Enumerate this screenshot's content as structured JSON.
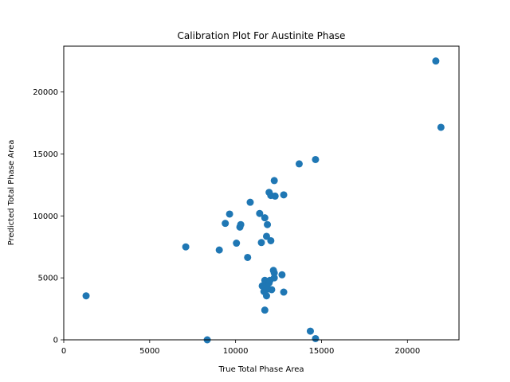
{
  "chart_data": {
    "type": "scatter",
    "title": "Calibration Plot For Austinite Phase",
    "xlabel": "True Total Phase Area",
    "ylabel": "Predicted Total Phase Area",
    "xlim": [
      0,
      23000
    ],
    "ylim": [
      0,
      23700
    ],
    "xticks": [
      0,
      5000,
      10000,
      15000,
      20000
    ],
    "yticks": [
      0,
      5000,
      10000,
      15000,
      20000
    ],
    "xtick_labels": [
      "0",
      "5000",
      "10000",
      "15000",
      "20000"
    ],
    "ytick_labels": [
      "0",
      "5000",
      "10000",
      "15000",
      "20000"
    ],
    "grid": false,
    "marker_color": "#1f77b4",
    "series": [
      {
        "points": [
          [
            1300,
            3550
          ],
          [
            7100,
            7500
          ],
          [
            8350,
            0
          ],
          [
            9050,
            7250
          ],
          [
            9400,
            9400
          ],
          [
            9650,
            10150
          ],
          [
            10050,
            7800
          ],
          [
            10250,
            9100
          ],
          [
            10300,
            9300
          ],
          [
            10700,
            6650
          ],
          [
            10850,
            11100
          ],
          [
            11400,
            10200
          ],
          [
            11500,
            7850
          ],
          [
            11550,
            4350
          ],
          [
            11650,
            3900
          ],
          [
            11700,
            9850
          ],
          [
            11700,
            4800
          ],
          [
            11700,
            2400
          ],
          [
            11750,
            4300
          ],
          [
            11800,
            3550
          ],
          [
            11800,
            8350
          ],
          [
            11850,
            9300
          ],
          [
            11900,
            4100
          ],
          [
            11950,
            4600
          ],
          [
            11950,
            11900
          ],
          [
            12000,
            4800
          ],
          [
            12050,
            8000
          ],
          [
            12050,
            11650
          ],
          [
            12100,
            4050
          ],
          [
            12200,
            5600
          ],
          [
            12250,
            5400
          ],
          [
            12250,
            5000
          ],
          [
            12250,
            12850
          ],
          [
            12300,
            11600
          ],
          [
            12700,
            5250
          ],
          [
            12800,
            11700
          ],
          [
            12800,
            3850
          ],
          [
            13700,
            14200
          ],
          [
            14350,
            700
          ],
          [
            14650,
            14550
          ],
          [
            14650,
            100
          ],
          [
            21650,
            22500
          ],
          [
            21950,
            17150
          ]
        ]
      }
    ]
  }
}
